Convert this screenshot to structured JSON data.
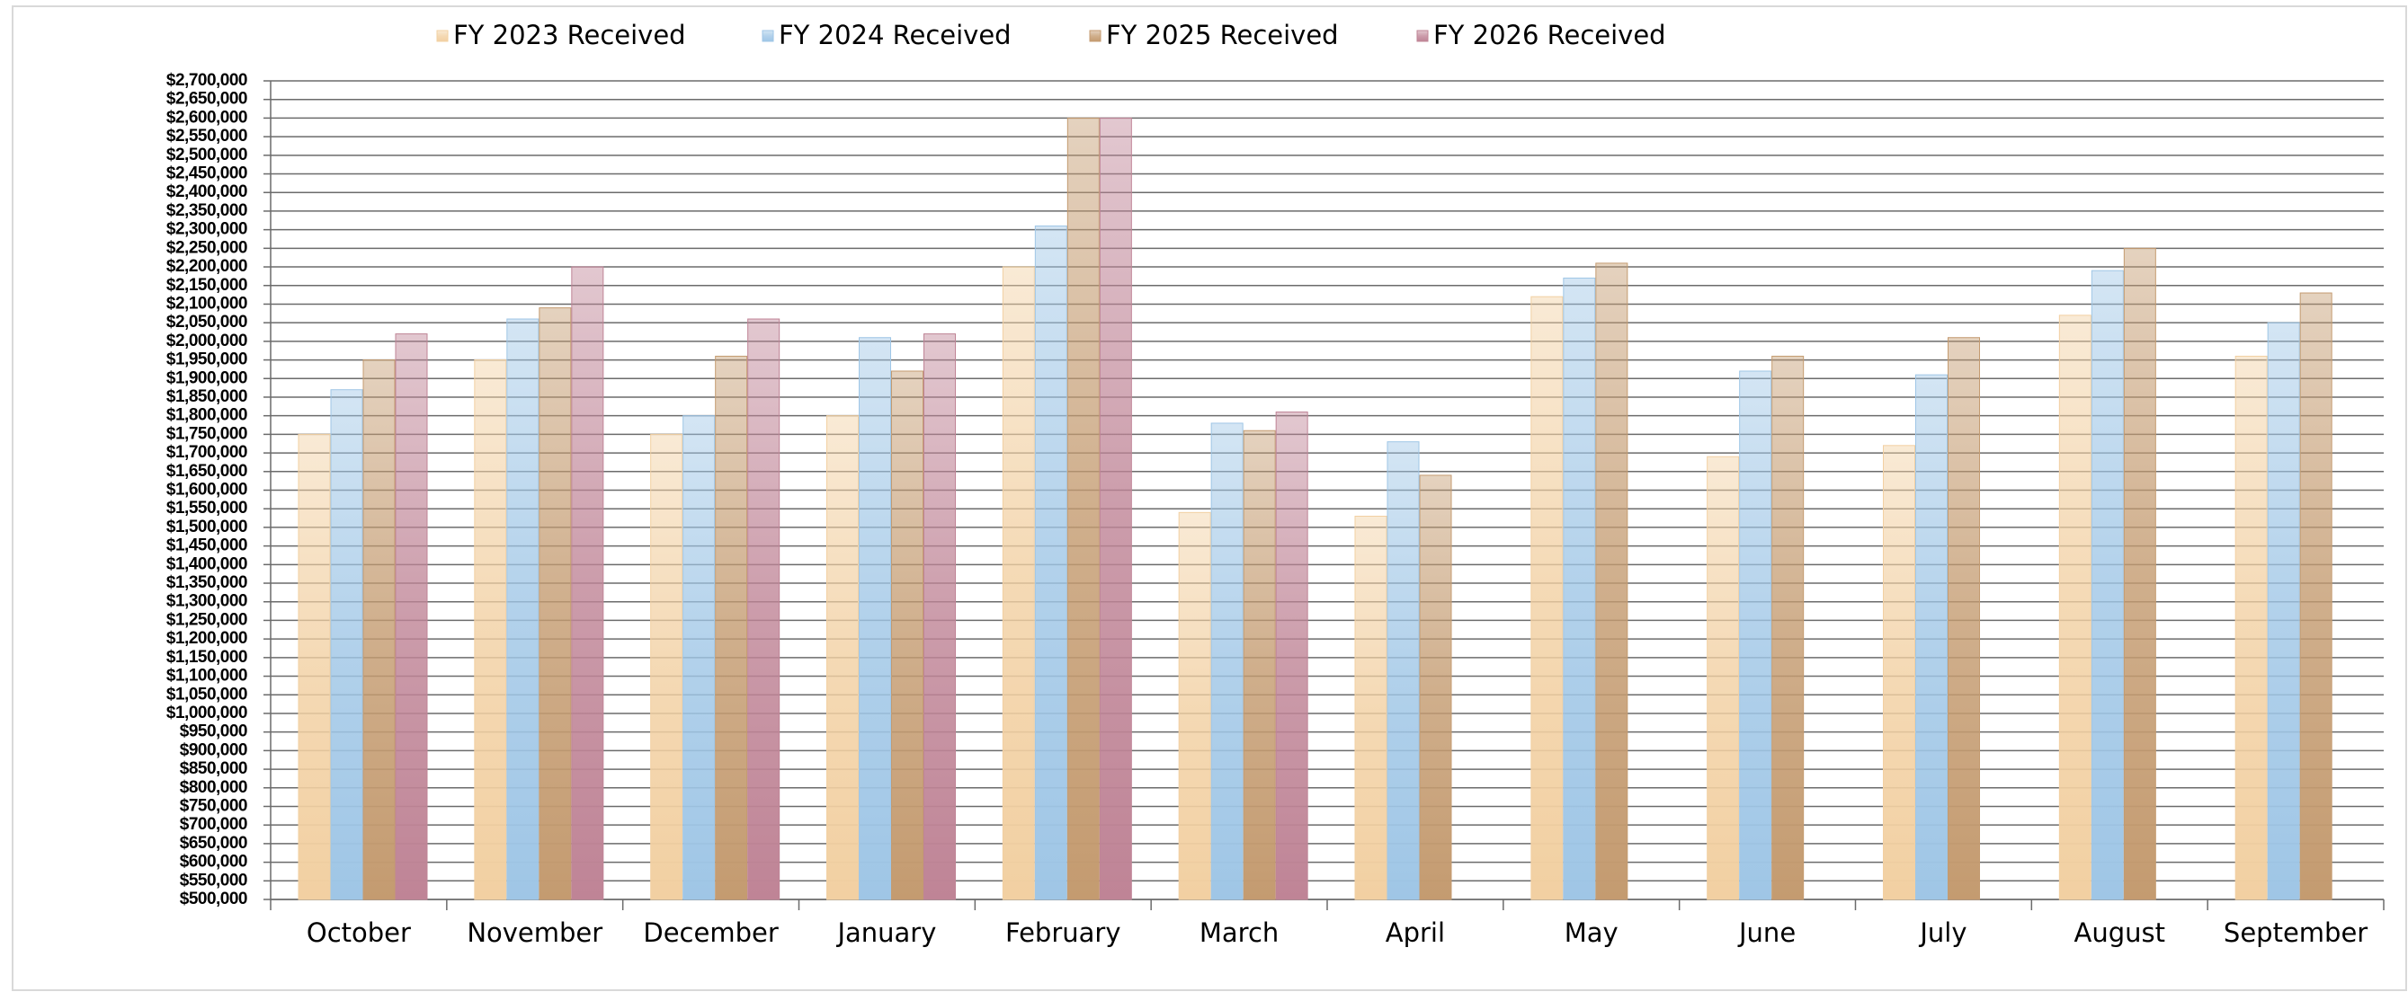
{
  "chart_data": {
    "type": "bar",
    "categories": [
      "October",
      "November",
      "December",
      "January",
      "February",
      "March",
      "April",
      "May",
      "June",
      "July",
      "August",
      "September"
    ],
    "series": [
      {
        "name": "FY 2023 Received",
        "color": "#f2d0a2",
        "values": [
          1750000,
          1950000,
          1750000,
          1800000,
          2200000,
          1540000,
          1530000,
          2120000,
          1690000,
          1720000,
          2070000,
          1960000
        ]
      },
      {
        "name": "FY 2024 Received",
        "color": "#9fc6e6",
        "values": [
          1870000,
          2060000,
          1800000,
          2010000,
          2310000,
          1780000,
          1730000,
          2170000,
          1920000,
          1910000,
          2190000,
          2050000
        ]
      },
      {
        "name": "FY 2025 Received",
        "color": "#c49b70",
        "values": [
          1950000,
          2090000,
          1960000,
          1920000,
          2600000,
          1760000,
          1640000,
          2210000,
          1960000,
          2010000,
          2250000,
          2130000
        ]
      },
      {
        "name": "FY 2026 Received",
        "color": "#bf8496",
        "values": [
          2020000,
          2200000,
          2060000,
          2020000,
          2600000,
          1810000,
          null,
          null,
          null,
          null,
          null,
          null
        ]
      }
    ],
    "ylim": [
      500000,
      2700000
    ],
    "yticks": [
      {
        "value": 500000,
        "label": "$500,000"
      },
      {
        "value": 550000,
        "label": "$550,000"
      },
      {
        "value": 600000,
        "label": "$600,000"
      },
      {
        "value": 650000,
        "label": "$650,000"
      },
      {
        "value": 700000,
        "label": "$700,000"
      },
      {
        "value": 750000,
        "label": "$750,000"
      },
      {
        "value": 800000,
        "label": "$800,000"
      },
      {
        "value": 850000,
        "label": "$850,000"
      },
      {
        "value": 900000,
        "label": "$900,000"
      },
      {
        "value": 950000,
        "label": "$950,000"
      },
      {
        "value": 1000000,
        "label": "$1,000,000"
      },
      {
        "value": 1050000,
        "label": "$1,050,000"
      },
      {
        "value": 1100000,
        "label": "$1,100,000"
      },
      {
        "value": 1150000,
        "label": "$1,150,000"
      },
      {
        "value": 1200000,
        "label": "$1,200,000"
      },
      {
        "value": 1250000,
        "label": "$1,250,000"
      },
      {
        "value": 1300000,
        "label": "$1,300,000"
      },
      {
        "value": 1350000,
        "label": "$1,350,000"
      },
      {
        "value": 1400000,
        "label": "$1,400,000"
      },
      {
        "value": 1450000,
        "label": "$1,450,000"
      },
      {
        "value": 1500000,
        "label": "$1,500,000"
      },
      {
        "value": 1550000,
        "label": "$1,550,000"
      },
      {
        "value": 1600000,
        "label": "$1,600,000"
      },
      {
        "value": 1650000,
        "label": "$1,650,000"
      },
      {
        "value": 1700000,
        "label": "$1,700,000"
      },
      {
        "value": 1750000,
        "label": "$1,750,000"
      },
      {
        "value": 1800000,
        "label": "$1,800,000"
      },
      {
        "value": 1850000,
        "label": "$1,850,000"
      },
      {
        "value": 1900000,
        "label": "$1,900,000"
      },
      {
        "value": 1950000,
        "label": "$1,950,000"
      },
      {
        "value": 2000000,
        "label": "$2,000,000"
      },
      {
        "value": 2050000,
        "label": "$2,050,000"
      },
      {
        "value": 2100000,
        "label": "$2,100,000"
      },
      {
        "value": 2150000,
        "label": "$2,150,000"
      },
      {
        "value": 2200000,
        "label": "$2,200,000"
      },
      {
        "value": 2250000,
        "label": "$2,250,000"
      },
      {
        "value": 2300000,
        "label": "$2,300,000"
      },
      {
        "value": 2350000,
        "label": "$2,350,000"
      },
      {
        "value": 2400000,
        "label": "$2,400,000"
      },
      {
        "value": 2450000,
        "label": "$2,450,000"
      },
      {
        "value": 2500000,
        "label": "$2,500,000"
      },
      {
        "value": 2550000,
        "label": "$2,550,000"
      },
      {
        "value": 2600000,
        "label": "$2,600,000"
      },
      {
        "value": 2650000,
        "label": "$2,650,000"
      },
      {
        "value": 2700000,
        "label": "$2,700,000"
      }
    ],
    "grid": true,
    "legend": "top"
  }
}
